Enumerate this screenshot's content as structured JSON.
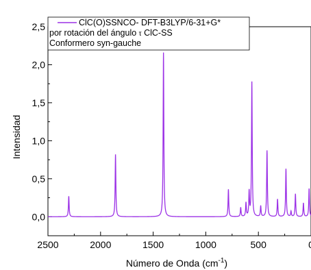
{
  "chart_data": {
    "type": "line",
    "xlabel": "Número de Onda (cm",
    "xlabel_sup": "-1",
    "xlabel_tail": ")",
    "ylabel": "Intensidad",
    "xlim": [
      2500,
      0
    ],
    "ylim": [
      -0.25,
      2.5
    ],
    "x_ticks": [
      2500,
      2000,
      1500,
      1000,
      500,
      0
    ],
    "x_tick_labels": [
      "2500",
      "2000",
      "1500",
      "1000",
      "500",
      "0"
    ],
    "y_ticks": [
      0.0,
      0.5,
      1.0,
      1.5,
      2.0,
      2.5
    ],
    "y_tick_labels": [
      "0,0",
      "0,5",
      "1,0",
      "1,5",
      "2,0",
      "2,5"
    ],
    "grid": false,
    "legend_position": "top-left",
    "legend": {
      "series_label": "ClC(O)SSNCO- DFT-B3LYP/6-31+G*",
      "line2_prefix": "por rotación del ángulo ",
      "line2_symbol": "τ",
      "line2_suffix": " ClC-SS",
      "line3": "Conformero syn-gauche"
    },
    "series": [
      {
        "color": "#9b30e6",
        "peaks": [
          {
            "x": 2302,
            "y": 0.27
          },
          {
            "x": 1858,
            "y": 0.82
          },
          {
            "x": 1402,
            "y": 2.16
          },
          {
            "x": 785,
            "y": 0.36
          },
          {
            "x": 668,
            "y": 0.12
          },
          {
            "x": 618,
            "y": 0.18
          },
          {
            "x": 588,
            "y": 0.32
          },
          {
            "x": 562,
            "y": 1.77
          },
          {
            "x": 478,
            "y": 0.14
          },
          {
            "x": 418,
            "y": 0.87
          },
          {
            "x": 318,
            "y": 0.23
          },
          {
            "x": 238,
            "y": 0.63
          },
          {
            "x": 190,
            "y": 0.07
          },
          {
            "x": 148,
            "y": 0.3
          },
          {
            "x": 72,
            "y": 0.18
          },
          {
            "x": 18,
            "y": 0.37
          }
        ]
      }
    ]
  }
}
